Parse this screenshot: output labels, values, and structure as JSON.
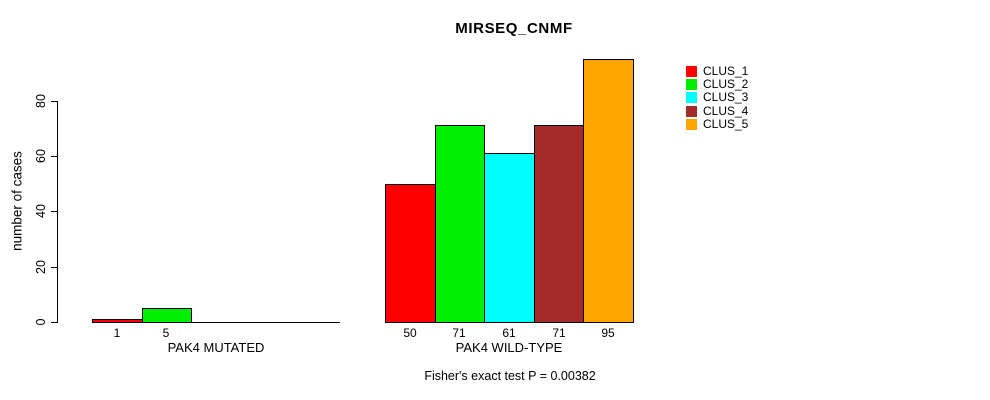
{
  "chart_data": {
    "type": "bar",
    "title": "MIRSEQ_CNMF",
    "ylabel": "number of cases",
    "xlabel": "",
    "annotation": "Fisher's exact test P = 0.00382",
    "y_axis": {
      "ticks": [
        0,
        20,
        40,
        60,
        80
      ],
      "lim": [
        0,
        95
      ],
      "grid": false
    },
    "categories": [
      "CLUS_1",
      "CLUS_2",
      "CLUS_3",
      "CLUS_4",
      "CLUS_5"
    ],
    "series_colors": [
      "#FF0000",
      "#00EE00",
      "#00FFFF",
      "#A52A2A",
      "#FFA500"
    ],
    "groups": [
      {
        "label": "PAK4 MUTATED",
        "values": [
          1,
          5,
          0,
          0,
          0
        ],
        "bar_labels": [
          "1",
          "5",
          "",
          "",
          ""
        ]
      },
      {
        "label": "PAK4 WILD-TYPE",
        "values": [
          50,
          71,
          61,
          71,
          95
        ],
        "bar_labels": [
          "50",
          "71",
          "61",
          "71",
          "95"
        ]
      }
    ],
    "legend": {
      "position": "right",
      "items": [
        {
          "label": "CLUS_1",
          "color": "#FF0000"
        },
        {
          "label": "CLUS_2",
          "color": "#00EE00"
        },
        {
          "label": "CLUS_3",
          "color": "#00FFFF"
        },
        {
          "label": "CLUS_4",
          "color": "#A52A2A"
        },
        {
          "label": "CLUS_5",
          "color": "#FFA500"
        }
      ]
    }
  }
}
